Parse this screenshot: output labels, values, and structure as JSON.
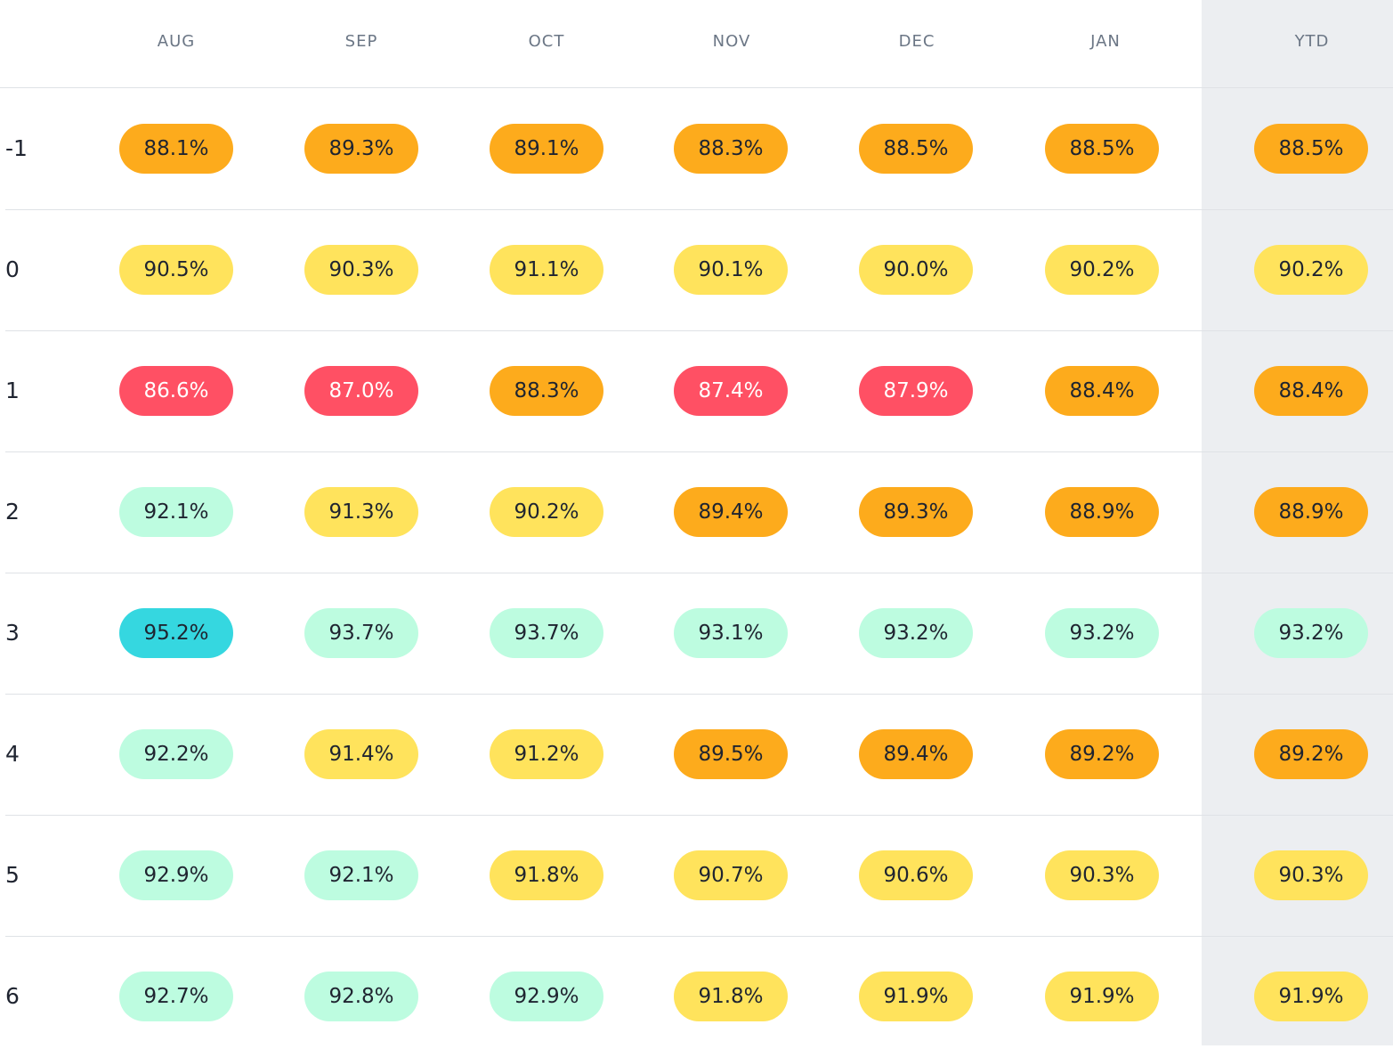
{
  "columns": [
    "AUG",
    "SEP",
    "OCT",
    "NOV",
    "DEC",
    "JAN",
    "YTD"
  ],
  "rows": [
    {
      "label": "-1",
      "values": [
        "88.1%",
        "89.3%",
        "89.1%",
        "88.3%",
        "88.5%",
        "88.5%",
        "88.5%"
      ]
    },
    {
      "label": "0",
      "values": [
        "90.5%",
        "90.3%",
        "91.1%",
        "90.1%",
        "90.0%",
        "90.2%",
        "90.2%"
      ]
    },
    {
      "label": "1",
      "values": [
        "86.6%",
        "87.0%",
        "88.3%",
        "87.4%",
        "87.9%",
        "88.4%",
        "88.4%"
      ]
    },
    {
      "label": "2",
      "values": [
        "92.1%",
        "91.3%",
        "90.2%",
        "89.4%",
        "89.3%",
        "88.9%",
        "88.9%"
      ]
    },
    {
      "label": "3",
      "values": [
        "95.2%",
        "93.7%",
        "93.7%",
        "93.1%",
        "93.2%",
        "93.2%",
        "93.2%"
      ]
    },
    {
      "label": "4",
      "values": [
        "92.2%",
        "91.4%",
        "91.2%",
        "89.5%",
        "89.4%",
        "89.2%",
        "89.2%"
      ]
    },
    {
      "label": "5",
      "values": [
        "92.9%",
        "92.1%",
        "91.8%",
        "90.7%",
        "90.6%",
        "90.3%",
        "90.3%"
      ]
    },
    {
      "label": "6",
      "values": [
        "92.7%",
        "92.8%",
        "92.9%",
        "91.8%",
        "91.9%",
        "91.9%",
        "91.9%"
      ]
    }
  ],
  "colors": {
    "red": "#ff5064",
    "orange": "#fdab1c",
    "yellow": "#ffe35c",
    "mint": "#bdfce0",
    "cyan": "#35d7e0",
    "ytd_background": "#eceef1"
  }
}
